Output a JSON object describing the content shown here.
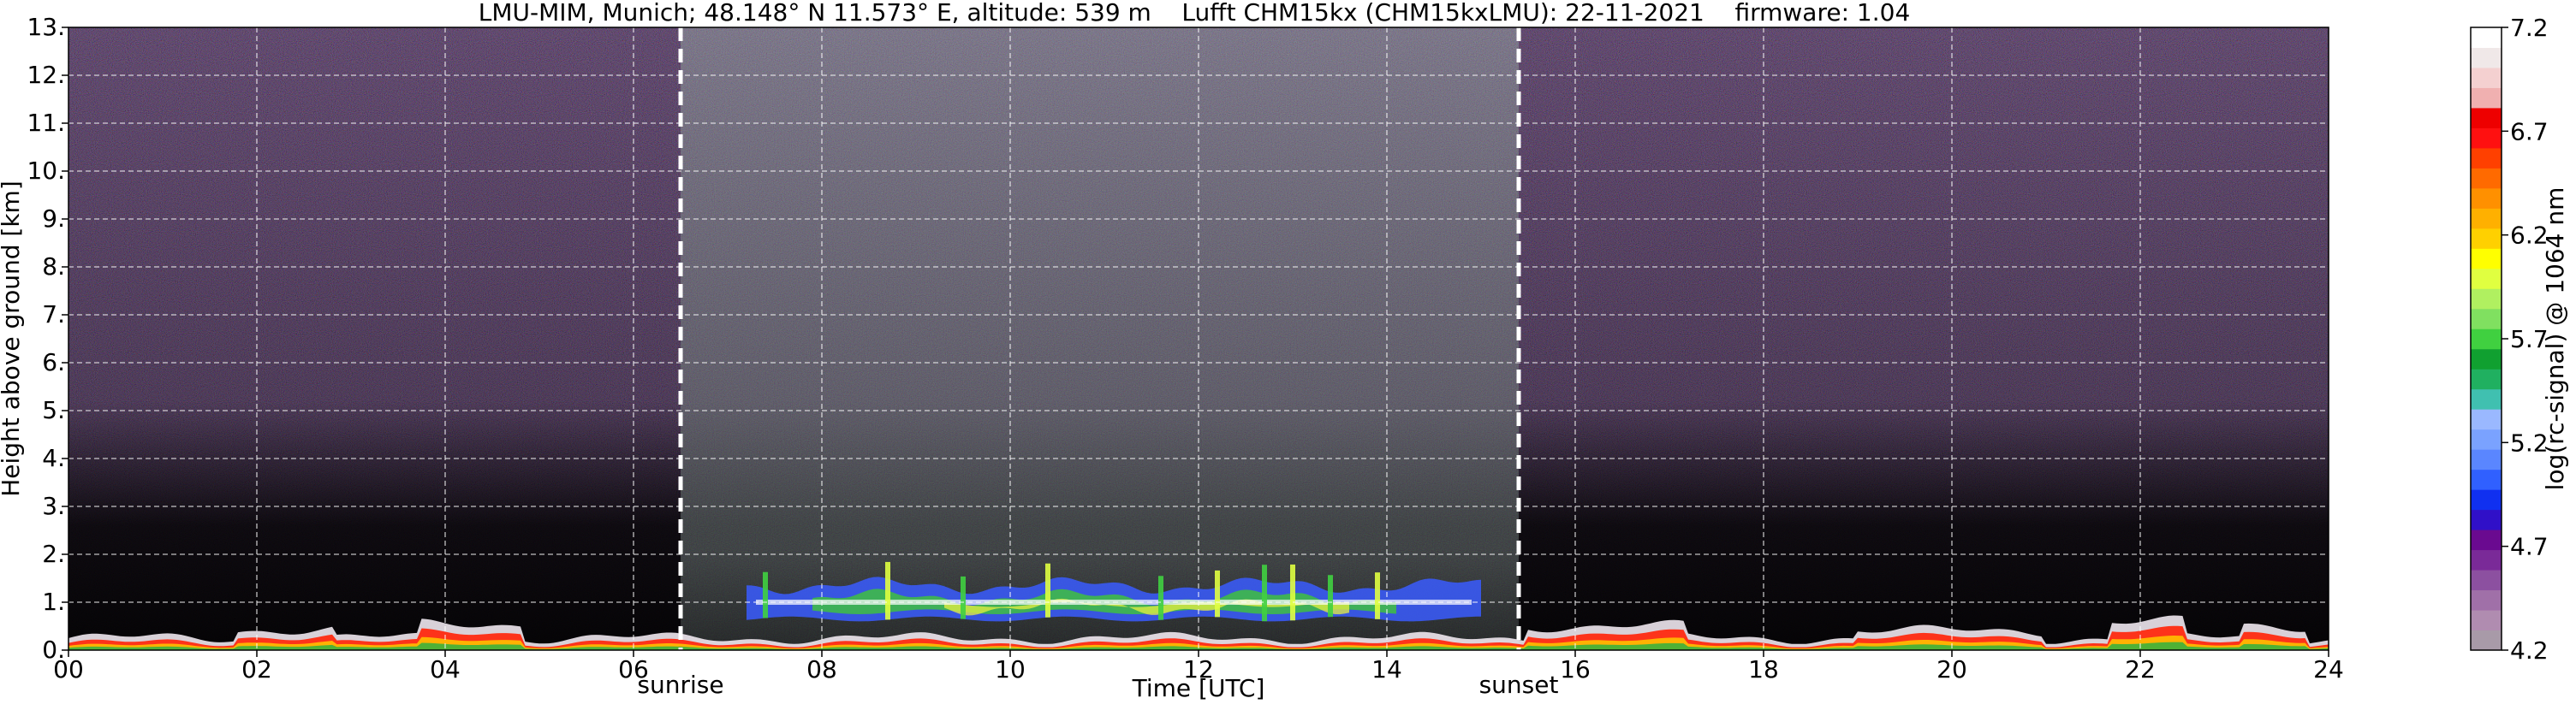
{
  "chart_data": {
    "type": "heatmap",
    "title": "LMU-MIM, Munich; 48.148° N 11.573° E, altitude: 539 m    Lufft CHM15kx (CHM15kxLMU): 22-11-2021    firmware: 1.04",
    "xlabel": "Time [UTC]",
    "ylabel": "Height above ground [km]",
    "x_range": [
      0,
      24
    ],
    "y_range": [
      0,
      13
    ],
    "x_ticks": [
      {
        "value": 0,
        "label": "00"
      },
      {
        "value": 2,
        "label": "02"
      },
      {
        "value": 4,
        "label": "04"
      },
      {
        "value": 6,
        "label": "06"
      },
      {
        "value": 8,
        "label": "08"
      },
      {
        "value": 10,
        "label": "10"
      },
      {
        "value": 12,
        "label": "12"
      },
      {
        "value": 14,
        "label": "14"
      },
      {
        "value": 16,
        "label": "16"
      },
      {
        "value": 18,
        "label": "18"
      },
      {
        "value": 20,
        "label": "20"
      },
      {
        "value": 22,
        "label": "22"
      },
      {
        "value": 24,
        "label": "24"
      }
    ],
    "y_ticks": [
      {
        "value": 0,
        "label": "0."
      },
      {
        "value": 1,
        "label": "1."
      },
      {
        "value": 2,
        "label": "2."
      },
      {
        "value": 3,
        "label": "3."
      },
      {
        "value": 4,
        "label": "4."
      },
      {
        "value": 5,
        "label": "5."
      },
      {
        "value": 6,
        "label": "6."
      },
      {
        "value": 7,
        "label": "7."
      },
      {
        "value": 8,
        "label": "8."
      },
      {
        "value": 9,
        "label": "9."
      },
      {
        "value": 10,
        "label": "10."
      },
      {
        "value": 11,
        "label": "11."
      },
      {
        "value": 12,
        "label": "12."
      },
      {
        "value": 13,
        "label": "13."
      }
    ],
    "grid": true,
    "annotations": [
      {
        "label": "sunrise",
        "x": 6.5
      },
      {
        "label": "sunset",
        "x": 15.4
      }
    ],
    "colorbar": {
      "label": "log(rc-signal) @ 1064 nm",
      "range": [
        4.2,
        7.2
      ],
      "ticks": [
        {
          "value": 4.2,
          "label": "4.2"
        },
        {
          "value": 4.7,
          "label": "4.7"
        },
        {
          "value": 5.2,
          "label": "5.2"
        },
        {
          "value": 5.7,
          "label": "5.7"
        },
        {
          "value": 6.2,
          "label": "6.2"
        },
        {
          "value": 6.7,
          "label": "6.7"
        },
        {
          "value": 7.2,
          "label": "7.2"
        }
      ],
      "colors": [
        "#a89aa8",
        "#b08cb0",
        "#a070a8",
        "#8c50a0",
        "#7a2a98",
        "#6a0a90",
        "#3010c8",
        "#1030f0",
        "#3060ff",
        "#5a86ff",
        "#7aa2ff",
        "#9ab8ff",
        "#40c0b0",
        "#20b060",
        "#10a030",
        "#40d040",
        "#80e060",
        "#b0f060",
        "#e0ff40",
        "#ffff00",
        "#ffd000",
        "#ffb000",
        "#ff9000",
        "#ff6a00",
        "#ff4000",
        "#ff1010",
        "#ee0000",
        "#f0b0b0",
        "#f4d0d0",
        "#f0e8e8",
        "#ffffff"
      ]
    }
  }
}
